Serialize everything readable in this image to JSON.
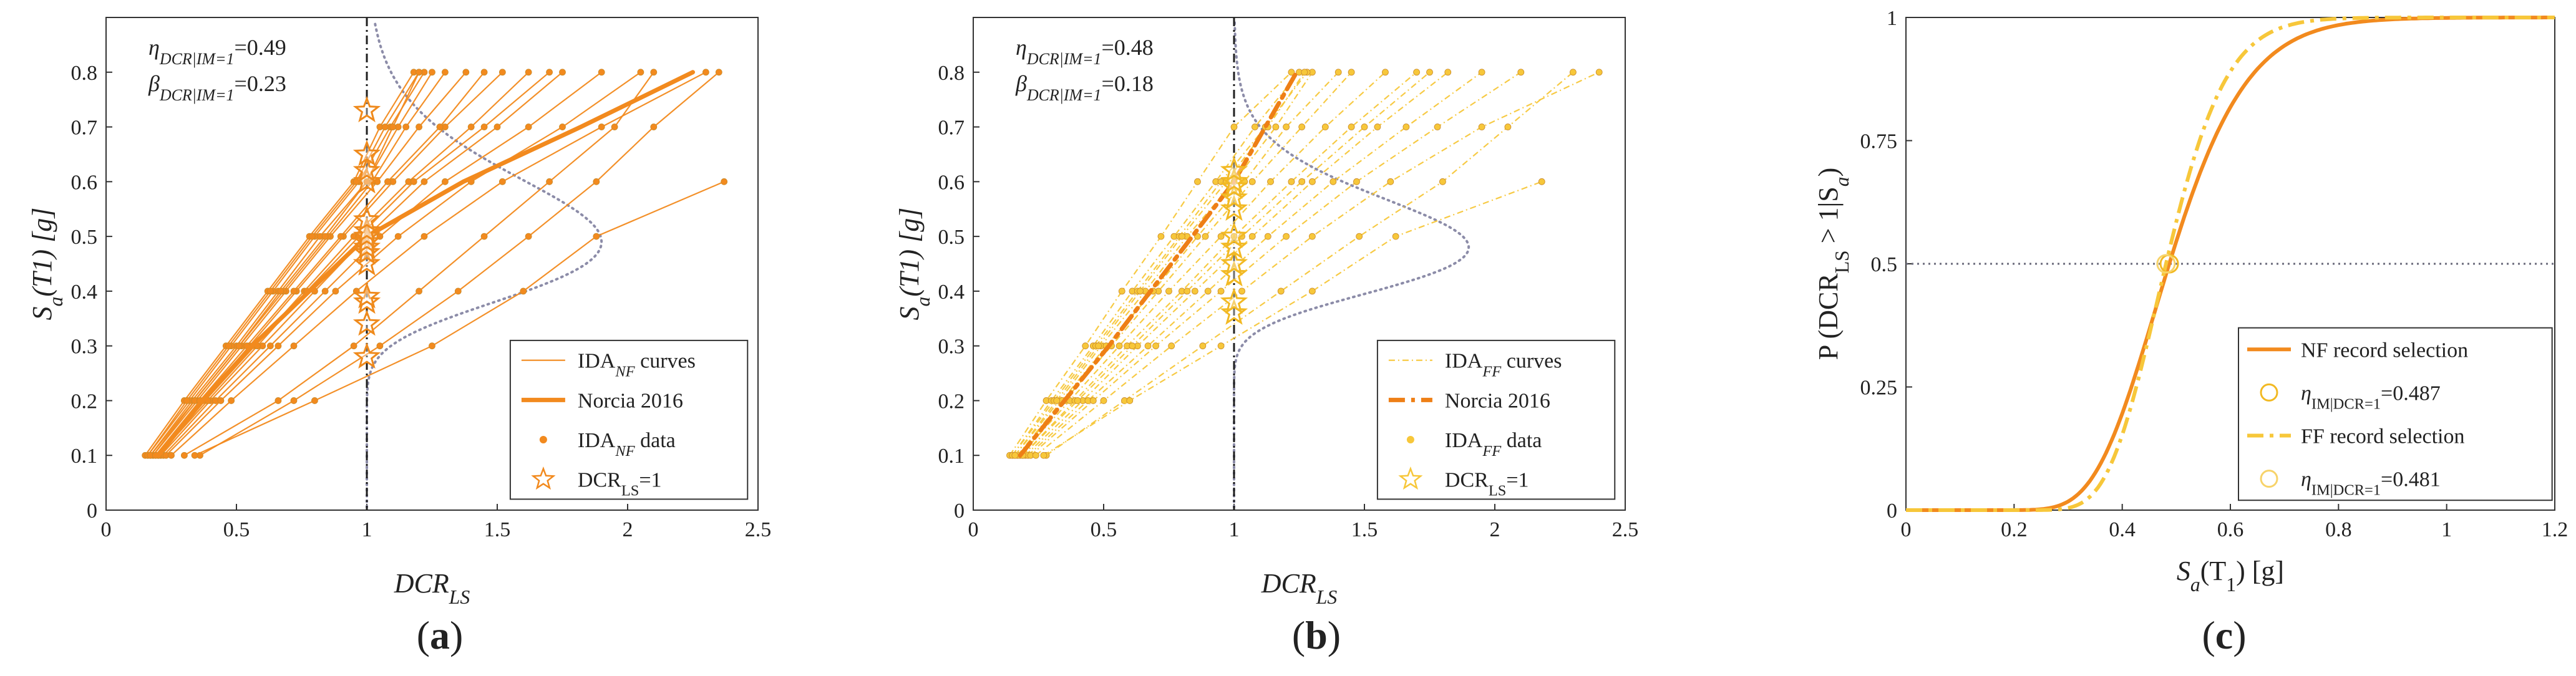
{
  "colors": {
    "nf": "#f28a1e",
    "nf_light": "#f5a94a",
    "ff": "#f7c73a",
    "ff_dark": "#ee7f16",
    "median": "#1f1f1f",
    "lognormal": "#8c8ca8",
    "grid": "#777777"
  },
  "chart_data": [
    {
      "id": "a",
      "panel_label": "a",
      "type": "line",
      "xlabel": "DCR",
      "xlabel_sub": "LS",
      "ylabel": "S",
      "ylabel_sub": "a",
      "ylabel_rest": "(T1) [g]",
      "xlim": [
        0,
        2.5
      ],
      "ylim": [
        0,
        0.9
      ],
      "xticks": [
        0,
        0.5,
        1,
        1.5,
        2,
        2.5
      ],
      "yticks": [
        0,
        0.1,
        0.2,
        0.3,
        0.4,
        0.5,
        0.6,
        0.7,
        0.8
      ],
      "xtick_labels": [
        "0",
        "0.5",
        "1",
        "1.5",
        "2",
        "2.5"
      ],
      "ytick_labels": [
        "0",
        "0.1",
        "0.2",
        "0.3",
        "0.4",
        "0.5",
        "0.6",
        "0.7",
        "0.8"
      ],
      "annotations": [
        {
          "sym": "η",
          "sub": "DCR|IM=1",
          "val": "=0.49"
        },
        {
          "sym": "β",
          "sub": "DCR|IM=1",
          "val": "=0.23"
        }
      ],
      "median_dcr": 1.0,
      "lognormal_median": 0.49,
      "lognormal_beta": 0.23,
      "lognormal_scale": 0.9,
      "im_levels": [
        0.1,
        0.2,
        0.3,
        0.4,
        0.5,
        0.6,
        0.7,
        0.8
      ],
      "ida_curves": [
        [
          0.15,
          0.3,
          0.46,
          0.62,
          0.78,
          0.95,
          1.05,
          1.18
        ],
        [
          0.17,
          0.33,
          0.5,
          0.66,
          0.82,
          1.0,
          1.12,
          1.25
        ],
        [
          0.18,
          0.35,
          0.52,
          0.69,
          0.86,
          1.04,
          1.2,
          1.38
        ],
        [
          0.16,
          0.32,
          0.48,
          0.64,
          0.8,
          0.97,
          1.09,
          1.22
        ],
        [
          0.19,
          0.37,
          0.55,
          0.73,
          0.91,
          1.1,
          1.3,
          1.52
        ],
        [
          0.2,
          0.38,
          0.57,
          0.76,
          0.95,
          1.16,
          1.4,
          1.62
        ],
        [
          0.21,
          0.4,
          0.6,
          0.8,
          1.0,
          1.22,
          1.5,
          1.75
        ],
        [
          0.22,
          0.42,
          0.63,
          0.84,
          1.05,
          1.3,
          1.62,
          1.9
        ],
        [
          0.23,
          0.44,
          0.66,
          0.88,
          1.12,
          1.4,
          1.75,
          2.05
        ],
        [
          0.25,
          0.48,
          0.72,
          0.96,
          1.22,
          1.52,
          1.9,
          2.3
        ],
        [
          0.16,
          0.31,
          0.47,
          0.63,
          0.79,
          0.96,
          1.07,
          1.2
        ],
        [
          0.18,
          0.34,
          0.51,
          0.68,
          0.85,
          1.02,
          1.15,
          1.3
        ],
        [
          0.2,
          0.39,
          0.58,
          0.77,
          0.97,
          1.18,
          1.45,
          1.7
        ],
        [
          0.3,
          0.66,
          0.95,
          1.2,
          1.45,
          1.7,
          1.95,
          2.1
        ],
        [
          0.36,
          0.72,
          1.05,
          1.35,
          1.62,
          1.88,
          2.1,
          2.35
        ],
        [
          0.34,
          0.8,
          1.25,
          1.6,
          1.88,
          2.37
        ],
        [
          0.17,
          0.34,
          0.51,
          0.67,
          0.84,
          1.0,
          1.1,
          1.2
        ],
        [
          0.19,
          0.36,
          0.54,
          0.72,
          0.9,
          1.08,
          1.28,
          1.45
        ]
      ],
      "ida_series_name": "IDA",
      "ida_series_sub": "NF",
      "ida_series_rest": " curves",
      "highlight_curve": {
        "name": "Norcia 2016",
        "dcr": [
          0.2,
          0.37,
          0.56,
          0.78,
          1.0,
          1.37,
          1.82,
          2.25
        ],
        "im": [
          0.1,
          0.2,
          0.3,
          0.4,
          0.5,
          0.6,
          0.7,
          0.8
        ]
      },
      "data_name": "IDA",
      "data_sub": "NF",
      "data_rest": "  data",
      "dcr_points_name": "DCR",
      "dcr_points_sub": "LS",
      "dcr_points_rest": "=1",
      "dcr_points": [
        0.28,
        0.34,
        0.38,
        0.39,
        0.45,
        0.47,
        0.48,
        0.49,
        0.5,
        0.51,
        0.53,
        0.6,
        0.62,
        0.65,
        0.73
      ],
      "line_style": "solid",
      "curve_color": "nf",
      "highlight_color": "nf",
      "highlight_dash": "none"
    },
    {
      "id": "b",
      "panel_label": "b",
      "type": "line",
      "xlabel": "DCR",
      "xlabel_sub": "LS",
      "ylabel": "S",
      "ylabel_sub": "a",
      "ylabel_rest": "(T1) [g]",
      "xlim": [
        0,
        2.5
      ],
      "ylim": [
        0,
        0.9
      ],
      "xticks": [
        0,
        0.5,
        1,
        1.5,
        2,
        2.5
      ],
      "yticks": [
        0,
        0.1,
        0.2,
        0.3,
        0.4,
        0.5,
        0.6,
        0.7,
        0.8
      ],
      "xtick_labels": [
        "0",
        "0.5",
        "1",
        "1.5",
        "2",
        "2.5"
      ],
      "ytick_labels": [
        "0",
        "0.1",
        "0.2",
        "0.3",
        "0.4",
        "0.5",
        "0.6",
        "0.7",
        "0.8"
      ],
      "annotations": [
        {
          "sym": "η",
          "sub": "DCR|IM=1",
          "val": "=0.48"
        },
        {
          "sym": "β",
          "sub": "DCR|IM=1",
          "val": "=0.18"
        }
      ],
      "median_dcr": 1.0,
      "lognormal_median": 0.48,
      "lognormal_beta": 0.18,
      "lognormal_scale": 0.9,
      "im_levels": [
        0.1,
        0.2,
        0.3,
        0.4,
        0.5,
        0.6,
        0.7,
        0.8
      ],
      "ida_curves": [
        [
          0.14,
          0.28,
          0.43,
          0.57,
          0.72,
          0.86,
          1.0,
          1.22
        ],
        [
          0.15,
          0.3,
          0.46,
          0.61,
          0.77,
          0.93,
          1.08,
          1.25
        ],
        [
          0.16,
          0.33,
          0.49,
          0.66,
          0.82,
          1.0,
          1.16,
          1.3
        ],
        [
          0.17,
          0.35,
          0.53,
          0.71,
          0.89,
          1.07,
          1.26,
          1.45
        ],
        [
          0.18,
          0.37,
          0.56,
          0.75,
          0.95,
          1.14,
          1.35,
          1.58
        ],
        [
          0.19,
          0.39,
          0.59,
          0.8,
          1.0,
          1.22,
          1.45,
          1.7
        ],
        [
          0.2,
          0.42,
          0.63,
          0.85,
          1.07,
          1.3,
          1.55,
          1.82
        ],
        [
          0.21,
          0.44,
          0.67,
          0.9,
          1.13,
          1.38,
          1.66,
          1.95
        ],
        [
          0.22,
          0.46,
          0.7,
          0.95,
          1.2,
          1.47,
          1.78,
          2.1
        ],
        [
          0.24,
          0.5,
          0.76,
          1.03,
          1.3,
          1.6,
          1.95,
          2.4
        ],
        [
          0.15,
          0.31,
          0.47,
          0.63,
          0.79,
          0.95,
          1.12,
          1.28
        ],
        [
          0.17,
          0.34,
          0.51,
          0.69,
          0.86,
          1.04,
          1.2,
          1.4
        ],
        [
          0.19,
          0.4,
          0.61,
          0.82,
          1.03,
          1.26,
          1.5,
          1.75
        ],
        [
          0.28,
          0.58,
          0.88,
          1.18,
          1.48,
          1.8,
          2.05,
          2.3
        ],
        [
          0.27,
          0.6,
          0.95,
          1.3,
          1.62,
          2.18
        ],
        [
          0.16,
          0.32,
          0.48,
          0.64,
          0.8,
          0.97,
          1.13,
          1.27
        ]
      ],
      "ida_series_name": "IDA",
      "ida_series_sub": "FF",
      "ida_series_rest": " curves",
      "highlight_curve": {
        "name": "Norcia 2016",
        "dcr": [
          0.18,
          0.35,
          0.52,
          0.68,
          0.84,
          1.0,
          1.12,
          1.24
        ],
        "im": [
          0.1,
          0.2,
          0.3,
          0.4,
          0.5,
          0.6,
          0.7,
          0.8
        ]
      },
      "data_name": "IDA",
      "data_sub": "FF",
      "data_rest": "  data",
      "dcr_points_name": "DCR",
      "dcr_points_sub": "LS",
      "dcr_points_rest": "=1",
      "dcr_points": [
        0.36,
        0.38,
        0.43,
        0.45,
        0.48,
        0.5,
        0.55,
        0.57,
        0.59,
        0.6,
        0.62
      ],
      "line_style": "dashdot",
      "curve_color": "ff",
      "highlight_color": "ff_dark",
      "highlight_dash": "dashdot"
    },
    {
      "id": "c",
      "panel_label": "c",
      "type": "line",
      "xlabel": "S",
      "xlabel_sub": "a",
      "xlabel_rest": "(T",
      "xlabel_sub2": "1",
      "xlabel_rest2": ") [g]",
      "ylabel_pre": "P (DCR",
      "ylabel_sub": "LS",
      "ylabel_mid": " > 1|S",
      "ylabel_sub2": "a",
      "ylabel_end": ")",
      "xlim": [
        0,
        1.2
      ],
      "ylim": [
        0,
        1
      ],
      "xticks": [
        0,
        0.2,
        0.4,
        0.6,
        0.8,
        1,
        1.2
      ],
      "yticks": [
        0,
        0.25,
        0.5,
        0.75,
        1
      ],
      "xtick_labels": [
        "0",
        "0.2",
        "0.4",
        "0.6",
        "0.8",
        "1",
        "1.2"
      ],
      "ytick_labels": [
        "0",
        "0.25",
        "0.5",
        "0.75",
        "1"
      ],
      "series": [
        {
          "name": "NF record selection",
          "median": 0.487,
          "beta": 0.23,
          "color": "nf",
          "dash": "solid"
        },
        {
          "name": "FF record selection",
          "median": 0.481,
          "beta": 0.18,
          "color": "ff",
          "dash": "dashdot"
        }
      ],
      "median_markers": [
        {
          "sym": "η",
          "sub": "IM|DCR=1",
          "val": "=0.487",
          "x": 0.487,
          "y": 0.5
        },
        {
          "sym": "η",
          "sub": "IM|DCR=1",
          "val": "=0.481",
          "x": 0.481,
          "y": 0.5
        }
      ],
      "ref_line_y": 0.5
    }
  ]
}
